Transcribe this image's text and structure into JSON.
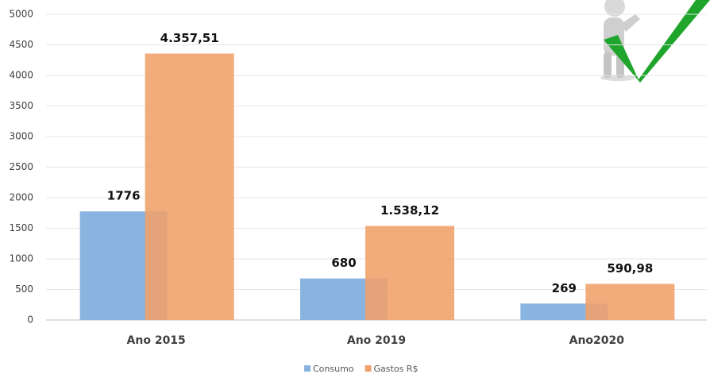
{
  "chart_data": {
    "type": "bar",
    "categories": [
      "Ano 2015",
      "Ano 2019",
      "Ano2020"
    ],
    "series": [
      {
        "name": "Consumo",
        "color": "#89b4df",
        "values": [
          1776,
          680,
          269
        ]
      },
      {
        "name": "Gastos R$",
        "color": "#f0a06a",
        "values": [
          4357.51,
          1538.12,
          590.98
        ],
        "value_labels": [
          "4.357,51",
          "1.538,12",
          "590,98"
        ]
      }
    ],
    "ylim": [
      0,
      5000
    ],
    "yticks": [
      0,
      500,
      1000,
      1500,
      2000,
      2500,
      3000,
      3500,
      4000,
      4500,
      5000
    ],
    "grid": true
  }
}
